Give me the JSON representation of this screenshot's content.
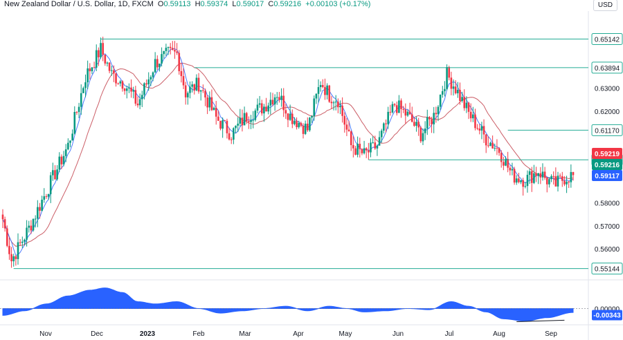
{
  "header": {
    "symbol": "New Zealand Dollar / U.S. Dollar, 1D, FXCM",
    "o_label": "O",
    "o": "0.59113",
    "h_label": "H",
    "h": "0.59374",
    "l_label": "L",
    "l": "0.59017",
    "c_label": "C",
    "c": "0.59216",
    "change": "+0.00103 (+0.17%)",
    "currency": "USD"
  },
  "chart_data": {
    "type": "candlestick",
    "title": "New Zealand Dollar / U.S. Dollar, 1D, FXCM",
    "y_range": [
      0.548,
      0.663
    ],
    "y_ticks": [
      "0.63000",
      "0.62000",
      "0.58000",
      "0.57000",
      "0.56000"
    ],
    "x_ticks": [
      "Nov",
      "Dec",
      "2023",
      "Feb",
      "Mar",
      "Apr",
      "May",
      "Jun",
      "Jul",
      "Aug",
      "Sep"
    ],
    "anchors": [
      [
        0,
        0.573
      ],
      [
        4,
        0.555
      ],
      [
        12,
        0.569
      ],
      [
        20,
        0.585
      ],
      [
        30,
        0.605
      ],
      [
        38,
        0.635
      ],
      [
        45,
        0.647
      ],
      [
        50,
        0.636
      ],
      [
        56,
        0.632
      ],
      [
        62,
        0.623
      ],
      [
        70,
        0.641
      ],
      [
        76,
        0.645
      ],
      [
        80,
        0.645
      ],
      [
        84,
        0.628
      ],
      [
        90,
        0.632
      ],
      [
        98,
        0.617
      ],
      [
        105,
        0.61
      ],
      [
        112,
        0.618
      ],
      [
        120,
        0.622
      ],
      [
        126,
        0.628
      ],
      [
        132,
        0.618
      ],
      [
        140,
        0.612
      ],
      [
        146,
        0.633
      ],
      [
        150,
        0.627
      ],
      [
        154,
        0.625
      ],
      [
        160,
        0.605
      ],
      [
        166,
        0.601
      ],
      [
        172,
        0.605
      ],
      [
        180,
        0.623
      ],
      [
        186,
        0.618
      ],
      [
        192,
        0.61
      ],
      [
        198,
        0.618
      ],
      [
        204,
        0.636
      ],
      [
        208,
        0.63
      ],
      [
        214,
        0.619
      ],
      [
        222,
        0.608
      ],
      [
        228,
        0.603
      ],
      [
        234,
        0.592
      ],
      [
        240,
        0.59
      ],
      [
        246,
        0.594
      ],
      [
        250,
        0.59
      ],
      [
        254,
        0.588
      ],
      [
        258,
        0.591
      ],
      [
        262,
        0.5922
      ]
    ],
    "price_lines": [
      {
        "value": "0.65142",
        "color": "#22ab94",
        "start_bar": 45,
        "text_color": "#131722"
      },
      {
        "value": "0.63894",
        "color": "#22ab94",
        "start_bar": 88,
        "text_color": "#131722"
      },
      {
        "value": "0.61170",
        "color": "#22ab94",
        "start_bar": 232,
        "text_color": "#131722"
      },
      {
        "value": "0.59879",
        "color": "#22ab94",
        "start_bar": 168,
        "text_color": "#131722"
      },
      {
        "value": "0.55144",
        "color": "#22ab94",
        "start_bar": 5,
        "text_color": "#131722"
      }
    ],
    "price_tags": [
      {
        "value": "0.59219",
        "bg": "#f23645"
      },
      {
        "value": "0.59216",
        "bg": "#089981"
      },
      {
        "value": "0.59117",
        "bg": "#2962ff"
      }
    ],
    "indicator": {
      "zero_label": "0.00000",
      "last_label": "-0.00343",
      "profile": [
        [
          0,
          -0.006
        ],
        [
          10,
          -0.002
        ],
        [
          20,
          0.004
        ],
        [
          30,
          0.011
        ],
        [
          40,
          0.016
        ],
        [
          47,
          0.018
        ],
        [
          55,
          0.014
        ],
        [
          62,
          0.006
        ],
        [
          70,
          0.004
        ],
        [
          80,
          0.006
        ],
        [
          90,
          0.0
        ],
        [
          100,
          -0.004
        ],
        [
          110,
          -0.002
        ],
        [
          120,
          0.0
        ],
        [
          130,
          0.002
        ],
        [
          140,
          -0.002
        ],
        [
          150,
          0.002
        ],
        [
          158,
          0.0
        ],
        [
          166,
          -0.003
        ],
        [
          176,
          -0.002
        ],
        [
          186,
          0.0
        ],
        [
          196,
          -0.001
        ],
        [
          206,
          0.006
        ],
        [
          214,
          0.002
        ],
        [
          222,
          -0.003
        ],
        [
          230,
          -0.009
        ],
        [
          240,
          -0.011
        ],
        [
          250,
          -0.008
        ],
        [
          262,
          -0.0034
        ]
      ],
      "range": [
        -0.013,
        0.022
      ]
    },
    "colors": {
      "up": "#089981",
      "down": "#f23645",
      "ma_fast": "#2962ff",
      "ma_slow": "#c2414b",
      "osc": "#2962ff"
    }
  }
}
